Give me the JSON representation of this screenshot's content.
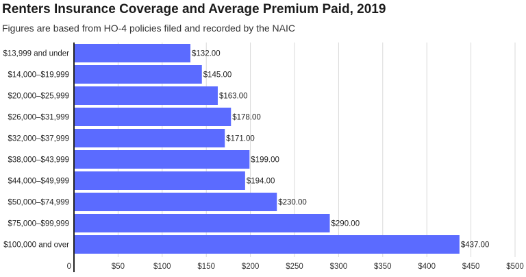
{
  "title": "Renters Insurance Coverage and Average Premium Paid, 2019",
  "subtitle": "Figures are based from HO-4 policies filed and recorded by the NAIC",
  "colors": {
    "bar": "#5b6bff",
    "grid": "#d9d9d9",
    "axis": "#222222"
  },
  "chart_data": {
    "type": "bar",
    "orientation": "horizontal",
    "title": "Renters Insurance Coverage and Average Premium Paid, 2019",
    "subtitle": "Figures are based from HO-4 policies filed and recorded by the NAIC",
    "categories": [
      "$13,999 and under",
      "$14,000–$19,999",
      "$20,000–$25,999",
      "$26,000–$31,999",
      "$32,000–$37,999",
      "$38,000–$43,999",
      "$44,000–$49,999",
      "$50,000–$74,999",
      "$75,000–$99,999",
      "$100,000 and over"
    ],
    "values": [
      132,
      145,
      163,
      178,
      171,
      199,
      194,
      230,
      290,
      437
    ],
    "value_labels": [
      "$132.00",
      "$145.00",
      "$163.00",
      "$178.00",
      "$171.00",
      "$199.00",
      "$194.00",
      "$230.00",
      "$290.00",
      "$437.00"
    ],
    "xlim": [
      0,
      500
    ],
    "xticks": [
      0,
      50,
      100,
      150,
      200,
      250,
      300,
      350,
      400,
      450,
      500
    ],
    "xtick_labels": [
      "0",
      "$50",
      "$100",
      "$150",
      "$200",
      "$250",
      "$300",
      "$350",
      "$400",
      "$450",
      "$500"
    ],
    "grid": true,
    "xlabel": "",
    "ylabel": ""
  }
}
